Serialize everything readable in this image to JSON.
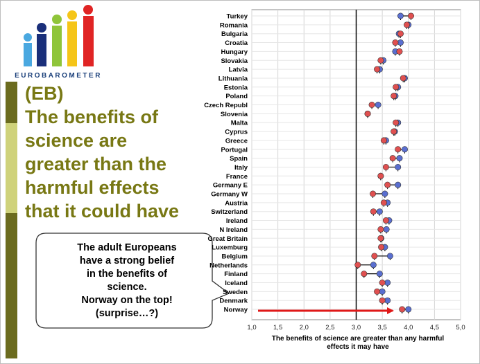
{
  "logo": {
    "text": "EUROBAROMETER"
  },
  "title": {
    "line1": "(EB)",
    "line2": "The benefits of",
    "line3": "science are",
    "line4": "greater than the",
    "line5": "harmful effects",
    "line6": "that it could have"
  },
  "callout": {
    "line1": "The adult Europeans",
    "line2": "have a strong belief",
    "line3": "in the benefits of",
    "line4": "science.",
    "line5": "Norway on the top!",
    "line6": "(surprise…?)"
  },
  "colors": {
    "red": "#e05050",
    "blue": "#5a6fd0",
    "arrow": "#e01818",
    "title": "#787814"
  },
  "chart_data": {
    "type": "scatter",
    "xlabel": "The benefits of science are greater than any harmful effects it may have",
    "xlim": [
      1.0,
      5.0
    ],
    "xticks": [
      "1,0",
      "1,5",
      "2,0",
      "2,5",
      "3,0",
      "3,5",
      "4,0",
      "4,5",
      "5,0"
    ],
    "reference_line": 3.0,
    "categories": [
      "Turkey",
      "Romania",
      "Bulgaria",
      "Croatia",
      "Hungary",
      "Slovakia",
      "Latvia",
      "Lithuania",
      "Estonia",
      "Poland",
      "Czech Republ",
      "Slovenia",
      "Malta",
      "Cyprus",
      "Greece",
      "Portugal",
      "Spain",
      "Italy",
      "France",
      "Germany E",
      "Germany W",
      "Austria",
      "Switzerland",
      "Ireland",
      "N Ireland",
      "Great Britain",
      "Luxemburg",
      "Belgium",
      "Netherlands",
      "Finland",
      "Iceland",
      "Sweden",
      "Denmark",
      "Norway"
    ],
    "series": [
      {
        "name": "red",
        "values": [
          4.05,
          3.97,
          3.85,
          3.75,
          3.83,
          3.47,
          3.4,
          3.9,
          3.76,
          3.72,
          3.3,
          3.22,
          3.76,
          3.72,
          3.53,
          3.8,
          3.7,
          3.57,
          3.47,
          3.6,
          3.32,
          3.53,
          3.33,
          3.57,
          3.47,
          3.47,
          3.48,
          3.35,
          3.03,
          3.15,
          3.5,
          3.4,
          3.5,
          3.88
        ]
      },
      {
        "name": "blue",
        "values": [
          3.85,
          4.0,
          3.82,
          3.85,
          3.75,
          3.52,
          3.45,
          3.93,
          3.8,
          3.75,
          3.42,
          3.22,
          3.8,
          3.74,
          3.57,
          3.93,
          3.83,
          3.8,
          3.47,
          3.8,
          3.55,
          3.6,
          3.45,
          3.63,
          3.58,
          3.48,
          3.55,
          3.65,
          3.33,
          3.45,
          3.6,
          3.5,
          3.6,
          4.0
        ]
      }
    ]
  }
}
